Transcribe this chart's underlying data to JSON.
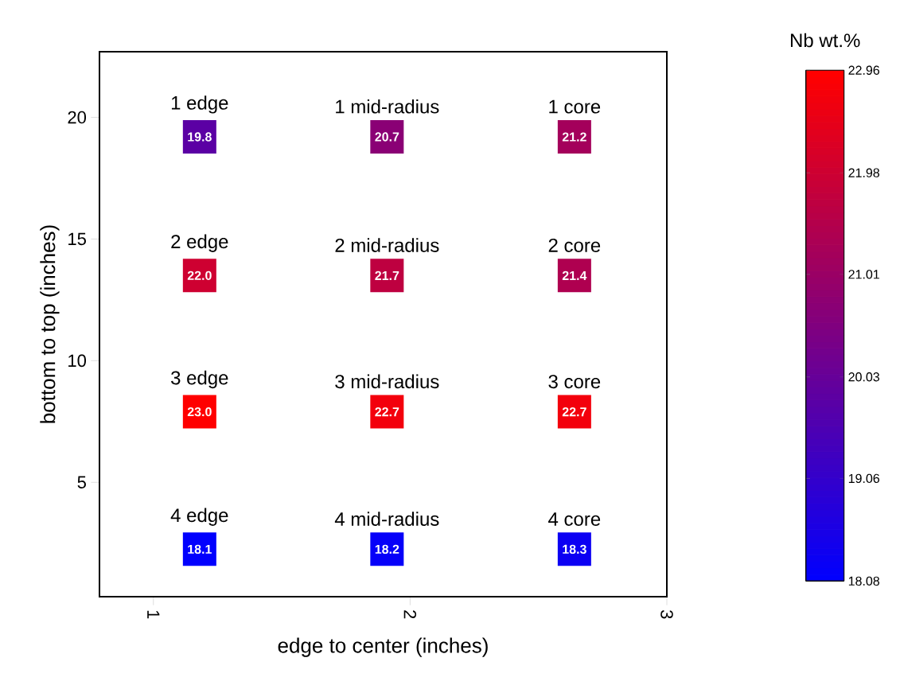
{
  "chart_data": {
    "type": "scatter",
    "xlabel": "edge to center (inches)",
    "ylabel": "bottom to top (inches)",
    "clabel": "Nb wt.%",
    "x": [
      1.18,
      1.91,
      2.64,
      1.18,
      1.91,
      2.64,
      1.18,
      1.91,
      2.64,
      1.18,
      1.91,
      2.64
    ],
    "values": [
      19.2,
      19.2,
      19.2,
      13.5,
      13.5,
      13.5,
      7.9,
      7.9,
      7.9,
      2.25,
      2.25,
      2.25
    ],
    "cvalues": [
      19.8,
      20.7,
      21.2,
      22.0,
      21.7,
      21.4,
      23.0,
      22.7,
      22.7,
      18.1,
      18.2,
      18.3
    ],
    "marker": "square",
    "clim": [
      18.08,
      22.96
    ],
    "cticks": [
      18.08,
      19.06,
      20.03,
      21.01,
      21.98,
      22.96
    ],
    "xlim": [
      0.79,
      3
    ],
    "ylim": [
      0.3,
      22.7
    ],
    "xticks": [
      1,
      2,
      3
    ],
    "yticks": [
      5,
      10,
      15,
      20
    ],
    "annotations": [
      "1 edge",
      "1 mid-radius",
      "1 core",
      "2 edge",
      "2 mid-radius",
      "2 core",
      "3 edge",
      "3 mid-radius",
      "3 core",
      "4 edge",
      "4 mid-radius",
      "4 core",
      {
        "text": "19.8",
        "x": 1.18,
        "y": 19.2
      },
      {
        "text": "20.7",
        "x": 1.91,
        "y": 19.2
      },
      {
        "text": "21.2",
        "x": 2.64,
        "y": 19.2
      },
      {
        "text": "22.0",
        "x": 1.18,
        "y": 13.5
      },
      {
        "text": "21.7",
        "x": 1.91,
        "y": 13.5
      },
      {
        "text": "21.4",
        "x": 2.64,
        "y": 13.5
      },
      {
        "text": "23.0",
        "x": 1.18,
        "y": 7.9
      },
      {
        "text": "22.7",
        "x": 1.91,
        "y": 7.9
      },
      {
        "text": "22.7",
        "x": 2.64,
        "y": 7.9
      },
      {
        "text": "18.1",
        "x": 1.18,
        "y": 2.25
      },
      {
        "text": "18.2",
        "x": 1.91,
        "y": 2.25
      },
      {
        "text": "18.3",
        "x": 2.64,
        "y": 2.25
      }
    ]
  }
}
